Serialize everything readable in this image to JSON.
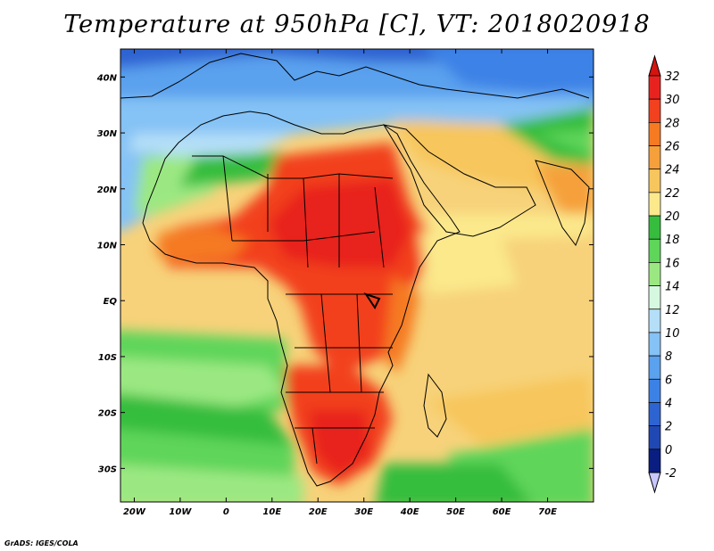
{
  "title": "Temperature at 950hPa [C], VT: 2018020918",
  "credit": "GrADS: IGES/COLA",
  "map": {
    "lon_range": [
      -23,
      80
    ],
    "lat_range": [
      -36,
      45
    ],
    "lat_labels": [
      "40N",
      "30N",
      "20N",
      "10N",
      "EQ",
      "10S",
      "20S",
      "30S"
    ],
    "lat_values": [
      40,
      30,
      20,
      10,
      0,
      -10,
      -20,
      -30
    ],
    "lon_labels": [
      "20W",
      "10W",
      "0",
      "10E",
      "20E",
      "30E",
      "40E",
      "50E",
      "60E",
      "70E"
    ],
    "lon_values": [
      -20,
      -10,
      0,
      10,
      20,
      30,
      40,
      50,
      60,
      70
    ]
  },
  "colorbar": {
    "levels": [
      "32",
      "30",
      "28",
      "26",
      "24",
      "22",
      "20",
      "18",
      "16",
      "14",
      "12",
      "10",
      "8",
      "6",
      "4",
      "2",
      "0",
      "-2"
    ],
    "colors": [
      "#e8231f",
      "#f2411f",
      "#f57a22",
      "#f5a03a",
      "#f7c65c",
      "#fbe98c",
      "#36bd3e",
      "#5fd55a",
      "#9be882",
      "#d6f8e0",
      "#b5dff8",
      "#85c2f5",
      "#5aa1ee",
      "#3c82e6",
      "#2d64d2",
      "#2048b4",
      "#0a1e82",
      "#c8c8ff"
    ],
    "top_arrow_color": "#d4140f",
    "bottom_arrow_color": "#c8c8ff"
  }
}
